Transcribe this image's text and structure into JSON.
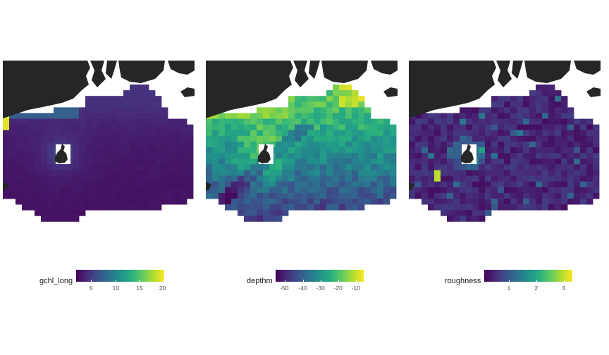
{
  "palette": [
    "#440154",
    "#472d7b",
    "#3b528b",
    "#2c728e",
    "#21918c",
    "#28ae80",
    "#5ec962",
    "#addc30",
    "#fde725"
  ],
  "land_color": "#262626",
  "panels": [
    {
      "legend": {
        "title": "gchl_long",
        "ticks": [
          "5",
          "10",
          "15",
          "20"
        ]
      },
      "data_summary": "log-decaying surface chlorophyll, high near coast"
    },
    {
      "legend": {
        "title": "depthm",
        "ticks": [
          "-50",
          "-40",
          "-30",
          "-20",
          "-10"
        ]
      },
      "data_summary": "bathymetry, shallow near coast and islands"
    },
    {
      "legend": {
        "title": "roughness",
        "ticks": [
          "1",
          "2",
          "3"
        ]
      },
      "data_summary": "seafloor roughness, mostly low with sparse spikes"
    }
  ]
}
